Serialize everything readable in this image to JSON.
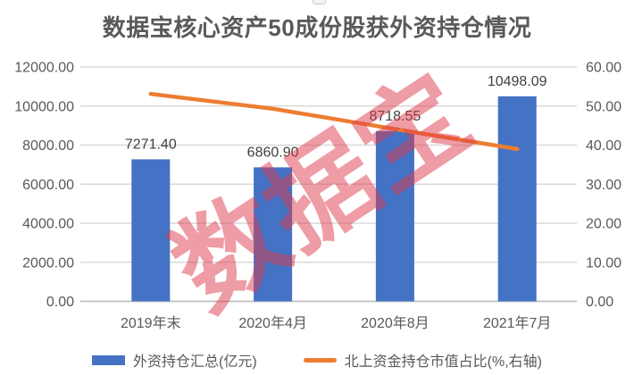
{
  "chart_data": {
    "type": "combo-bar-line",
    "title": "数据宝核心资产50成份股获外资持仓情况",
    "watermark": "数据宝",
    "categories": [
      "2019年末",
      "2020年4月",
      "2020年8月",
      "2021年7月"
    ],
    "series": [
      {
        "name": "外资持仓汇总(亿元)",
        "type": "bar",
        "axis": "left",
        "color": "#4472C4",
        "values": [
          7271.4,
          6860.9,
          8718.55,
          10498.09
        ],
        "data_labels": [
          "7271.40",
          "6860.90",
          "8718.55",
          "10498.09"
        ]
      },
      {
        "name": "北上资金持仓市值占比(%,右轴)",
        "type": "line",
        "axis": "right",
        "color": "#ED7D31",
        "values": [
          53.1,
          49.3,
          44.1,
          39.0
        ]
      }
    ],
    "left_axis": {
      "min": 0,
      "max": 12000,
      "step": 2000,
      "tick_labels": [
        "12000.00",
        "10000.00",
        "8000.00",
        "6000.00",
        "4000.00",
        "2000.00",
        "0.00"
      ]
    },
    "right_axis": {
      "min": 0,
      "max": 60,
      "step": 10,
      "tick_labels": [
        "60.00",
        "50.00",
        "40.00",
        "30.00",
        "20.00",
        "10.00",
        "0.00"
      ]
    },
    "gridlines": true,
    "legend_position": "bottom",
    "colors": {
      "gridline": "#D9D9D9",
      "axis_line": "#BFBFBF",
      "axis_text": "#595959",
      "data_label_text": "#3F3F3F",
      "title_text": "#595959",
      "watermark": "rgba(222,58,76,0.5)",
      "background": "#FFFFFF"
    }
  }
}
